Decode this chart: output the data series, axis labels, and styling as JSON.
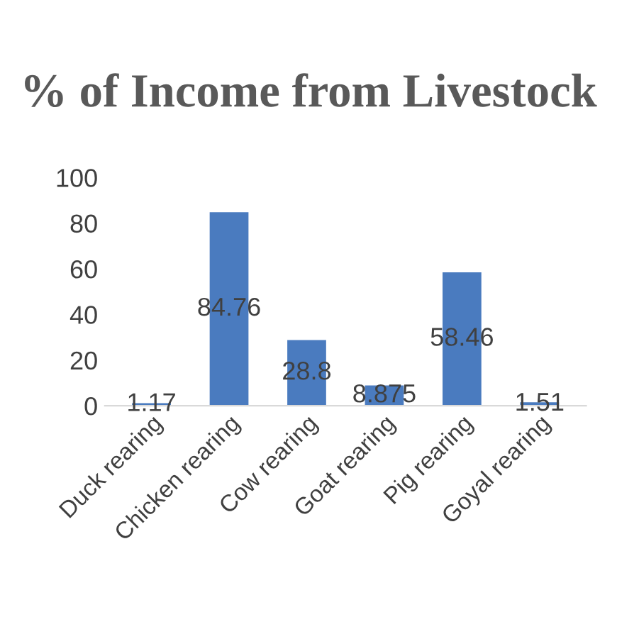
{
  "chart_data": {
    "type": "bar",
    "title": "% of Income from Livestock",
    "categories": [
      "Duck rearing",
      "Chicken rearing",
      "Cow rearing",
      "Goat rearing",
      "Pig rearing",
      "Goyal rearing"
    ],
    "values": [
      1.17,
      84.76,
      28.8,
      8.875,
      58.46,
      1.51
    ],
    "color": "#4a7bbf",
    "ylim": [
      0,
      100
    ],
    "yticks": [
      0,
      20,
      40,
      60,
      80,
      100
    ],
    "grid": false,
    "data_labels": true
  }
}
